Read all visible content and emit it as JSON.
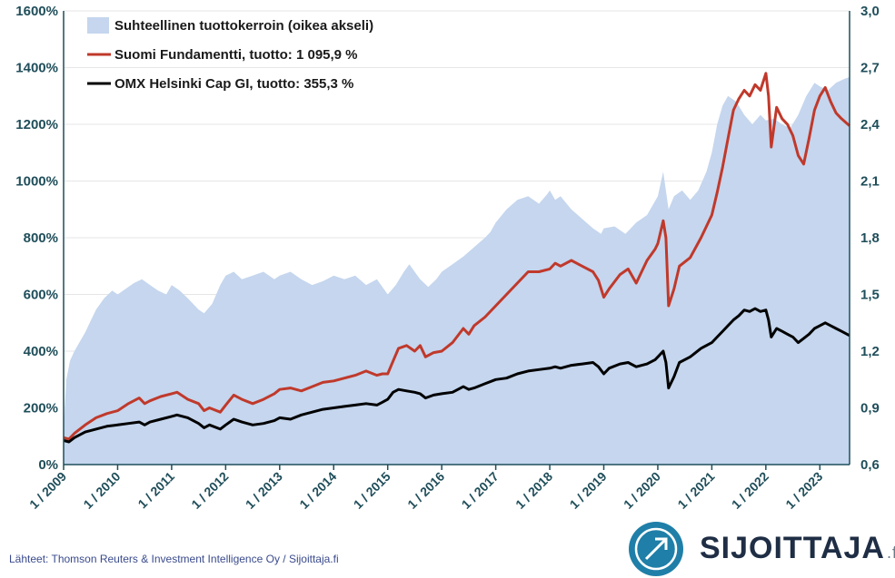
{
  "chart_data": {
    "type": "line",
    "legend": [
      {
        "key": "ratio",
        "label": "Suhteellinen tuottokerroin (oikea akseli)",
        "color": "#c5d6ee"
      },
      {
        "key": "fund",
        "label": "Suomi Fundamentti, tuotto: 1 095,9 %",
        "color": "#c0392b"
      },
      {
        "key": "omx",
        "label": "OMX Helsinki Cap GI, tuotto: 355,3 %",
        "color": "#000000"
      }
    ],
    "legend_position": "top-left",
    "grid": true,
    "left_axis": {
      "ticks": [
        "0%",
        "200%",
        "400%",
        "600%",
        "800%",
        "1000%",
        "1200%",
        "1400%",
        "1600%"
      ],
      "values": [
        0,
        200,
        400,
        600,
        800,
        1000,
        1200,
        1400,
        1600
      ],
      "ylim": [
        0,
        1600
      ]
    },
    "right_axis": {
      "ticks": [
        "0,6",
        "0,9",
        "1,2",
        "1,5",
        "1,8",
        "2,1",
        "2,4",
        "2,7",
        "3,0"
      ],
      "values": [
        0.6,
        0.9,
        1.2,
        1.5,
        1.8,
        2.1,
        2.4,
        2.7,
        3.0
      ],
      "ylim": [
        0.6,
        3.0
      ]
    },
    "x_axis": {
      "ticks": [
        "1 / 2009",
        "1 / 2010",
        "1 / 2011",
        "1 / 2012",
        "1 / 2013",
        "1 / 2014",
        "1 / 2015",
        "1 / 2016",
        "1 / 2017",
        "1 / 2018",
        "1 / 2019",
        "1 / 2020",
        "1 / 2021",
        "1 / 2022",
        "1 / 2023"
      ],
      "tick_years": [
        2009,
        2010,
        2011,
        2012,
        2013,
        2014,
        2015,
        2016,
        2017,
        2018,
        2019,
        2020,
        2021,
        2022,
        2023
      ],
      "xlim": [
        2009.0,
        2023.55
      ]
    },
    "series": [
      {
        "key": "ratio",
        "type": "area",
        "axis": "right",
        "x": [
          2009.0,
          2009.05,
          2009.12,
          2009.2,
          2009.3,
          2009.4,
          2009.5,
          2009.6,
          2009.75,
          2009.9,
          2010.0,
          2010.15,
          2010.3,
          2010.45,
          2010.6,
          2010.75,
          2010.9,
          2011.0,
          2011.15,
          2011.3,
          2011.5,
          2011.6,
          2011.75,
          2011.9,
          2012.0,
          2012.15,
          2012.3,
          2012.5,
          2012.7,
          2012.9,
          2013.0,
          2013.2,
          2013.4,
          2013.6,
          2013.8,
          2014.0,
          2014.2,
          2014.4,
          2014.6,
          2014.8,
          2014.95,
          2015.0,
          2015.15,
          2015.3,
          2015.4,
          2015.5,
          2015.6,
          2015.75,
          2015.9,
          2016.0,
          2016.2,
          2016.4,
          2016.6,
          2016.8,
          2016.9,
          2017.0,
          2017.2,
          2017.4,
          2017.6,
          2017.8,
          2017.95,
          2018.0,
          2018.1,
          2018.2,
          2018.4,
          2018.6,
          2018.8,
          2018.95,
          2019.0,
          2019.2,
          2019.4,
          2019.6,
          2019.8,
          2020.0,
          2020.1,
          2020.2,
          2020.3,
          2020.45,
          2020.6,
          2020.75,
          2020.9,
          2021.0,
          2021.1,
          2021.2,
          2021.3,
          2021.45,
          2021.6,
          2021.75,
          2021.9,
          2022.0,
          2022.15,
          2022.3,
          2022.45,
          2022.6,
          2022.75,
          2022.9,
          2023.0,
          2023.15,
          2023.3,
          2023.45,
          2023.55
        ],
        "values": [
          0.8,
          1.05,
          1.15,
          1.2,
          1.25,
          1.3,
          1.36,
          1.42,
          1.48,
          1.52,
          1.5,
          1.53,
          1.56,
          1.58,
          1.55,
          1.52,
          1.5,
          1.55,
          1.52,
          1.48,
          1.42,
          1.4,
          1.45,
          1.55,
          1.6,
          1.62,
          1.58,
          1.6,
          1.62,
          1.58,
          1.6,
          1.62,
          1.58,
          1.55,
          1.57,
          1.6,
          1.58,
          1.6,
          1.55,
          1.58,
          1.52,
          1.5,
          1.55,
          1.62,
          1.66,
          1.62,
          1.58,
          1.54,
          1.58,
          1.62,
          1.66,
          1.7,
          1.75,
          1.8,
          1.83,
          1.88,
          1.95,
          2.0,
          2.02,
          1.98,
          2.03,
          2.05,
          2.0,
          2.02,
          1.95,
          1.9,
          1.85,
          1.82,
          1.85,
          1.86,
          1.82,
          1.88,
          1.92,
          2.02,
          2.15,
          1.95,
          2.02,
          2.05,
          2.0,
          2.05,
          2.15,
          2.25,
          2.4,
          2.5,
          2.55,
          2.52,
          2.45,
          2.4,
          2.45,
          2.42,
          2.43,
          2.4,
          2.38,
          2.45,
          2.55,
          2.62,
          2.6,
          2.58,
          2.62,
          2.64,
          2.65
        ]
      },
      {
        "key": "fund",
        "type": "line",
        "axis": "left",
        "x": [
          2009.0,
          2009.1,
          2009.2,
          2009.4,
          2009.6,
          2009.8,
          2010.0,
          2010.2,
          2010.4,
          2010.5,
          2010.6,
          2010.8,
          2011.0,
          2011.1,
          2011.3,
          2011.5,
          2011.6,
          2011.7,
          2011.9,
          2012.0,
          2012.15,
          2012.3,
          2012.5,
          2012.7,
          2012.9,
          2013.0,
          2013.2,
          2013.4,
          2013.6,
          2013.8,
          2014.0,
          2014.2,
          2014.4,
          2014.6,
          2014.8,
          2014.9,
          2015.0,
          2015.1,
          2015.2,
          2015.35,
          2015.5,
          2015.6,
          2015.7,
          2015.85,
          2016.0,
          2016.2,
          2016.4,
          2016.5,
          2016.6,
          2016.8,
          2017.0,
          2017.2,
          2017.4,
          2017.6,
          2017.8,
          2018.0,
          2018.1,
          2018.2,
          2018.4,
          2018.6,
          2018.8,
          2018.9,
          2019.0,
          2019.1,
          2019.3,
          2019.45,
          2019.6,
          2019.8,
          2019.95,
          2020.0,
          2020.1,
          2020.15,
          2020.2,
          2020.3,
          2020.4,
          2020.6,
          2020.8,
          2021.0,
          2021.1,
          2021.2,
          2021.3,
          2021.4,
          2021.5,
          2021.6,
          2021.7,
          2021.8,
          2021.9,
          2022.0,
          2022.05,
          2022.1,
          2022.2,
          2022.3,
          2022.4,
          2022.5,
          2022.6,
          2022.7,
          2022.8,
          2022.9,
          2023.0,
          2023.1,
          2023.2,
          2023.3,
          2023.4,
          2023.55
        ],
        "values": [
          95,
          90,
          110,
          140,
          165,
          180,
          190,
          215,
          235,
          215,
          225,
          240,
          250,
          255,
          230,
          215,
          190,
          200,
          185,
          210,
          245,
          230,
          215,
          230,
          250,
          265,
          270,
          260,
          275,
          290,
          295,
          305,
          315,
          330,
          315,
          320,
          320,
          365,
          410,
          420,
          400,
          420,
          380,
          395,
          400,
          430,
          480,
          460,
          490,
          520,
          560,
          600,
          640,
          680,
          680,
          690,
          710,
          700,
          720,
          700,
          680,
          650,
          590,
          620,
          670,
          690,
          640,
          720,
          760,
          780,
          860,
          800,
          560,
          620,
          700,
          730,
          800,
          880,
          960,
          1050,
          1150,
          1250,
          1290,
          1320,
          1300,
          1340,
          1320,
          1380,
          1300,
          1120,
          1260,
          1220,
          1200,
          1160,
          1090,
          1060,
          1150,
          1250,
          1300,
          1330,
          1280,
          1240,
          1220,
          1195
        ]
      },
      {
        "key": "omx",
        "type": "line",
        "axis": "left",
        "x": [
          2009.0,
          2009.1,
          2009.2,
          2009.4,
          2009.6,
          2009.8,
          2010.0,
          2010.2,
          2010.4,
          2010.5,
          2010.6,
          2010.8,
          2011.0,
          2011.1,
          2011.3,
          2011.5,
          2011.6,
          2011.7,
          2011.9,
          2012.0,
          2012.15,
          2012.3,
          2012.5,
          2012.7,
          2012.9,
          2013.0,
          2013.2,
          2013.4,
          2013.6,
          2013.8,
          2014.0,
          2014.2,
          2014.4,
          2014.6,
          2014.8,
          2014.9,
          2015.0,
          2015.1,
          2015.2,
          2015.35,
          2015.5,
          2015.6,
          2015.7,
          2015.85,
          2016.0,
          2016.2,
          2016.4,
          2016.5,
          2016.6,
          2016.8,
          2017.0,
          2017.2,
          2017.4,
          2017.6,
          2017.8,
          2018.0,
          2018.1,
          2018.2,
          2018.4,
          2018.6,
          2018.8,
          2018.9,
          2019.0,
          2019.1,
          2019.3,
          2019.45,
          2019.6,
          2019.8,
          2019.95,
          2020.0,
          2020.1,
          2020.15,
          2020.2,
          2020.3,
          2020.4,
          2020.6,
          2020.8,
          2021.0,
          2021.1,
          2021.2,
          2021.3,
          2021.4,
          2021.5,
          2021.6,
          2021.7,
          2021.8,
          2021.9,
          2022.0,
          2022.05,
          2022.1,
          2022.2,
          2022.3,
          2022.4,
          2022.5,
          2022.6,
          2022.7,
          2022.8,
          2022.9,
          2023.0,
          2023.1,
          2023.2,
          2023.3,
          2023.4,
          2023.55
        ],
        "values": [
          85,
          80,
          95,
          115,
          125,
          135,
          140,
          145,
          150,
          140,
          150,
          160,
          170,
          175,
          165,
          145,
          130,
          140,
          125,
          140,
          160,
          150,
          140,
          145,
          155,
          165,
          160,
          175,
          185,
          195,
          200,
          205,
          210,
          215,
          210,
          220,
          230,
          255,
          265,
          260,
          255,
          250,
          235,
          245,
          250,
          255,
          275,
          265,
          270,
          285,
          300,
          305,
          320,
          330,
          335,
          340,
          345,
          340,
          350,
          355,
          360,
          345,
          320,
          340,
          355,
          360,
          345,
          355,
          370,
          380,
          400,
          360,
          270,
          310,
          360,
          380,
          410,
          430,
          450,
          470,
          490,
          510,
          525,
          545,
          540,
          550,
          540,
          545,
          510,
          450,
          480,
          470,
          460,
          450,
          430,
          445,
          460,
          480,
          490,
          500,
          490,
          480,
          470,
          455
        ]
      }
    ]
  },
  "footer": {
    "source": "Lähteet: Thomson Reuters & Investment Intelligence Oy / Sijoittaja.fi",
    "logo_text": "SIJOITTAJA",
    "logo_suffix": ".fi"
  }
}
